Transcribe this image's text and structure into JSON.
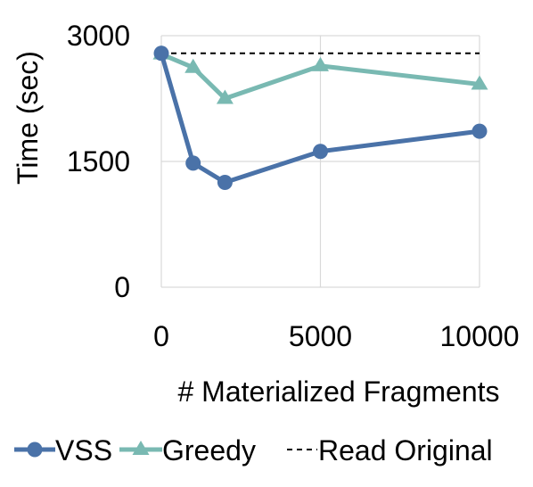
{
  "chart_data": {
    "type": "line",
    "title": "",
    "xlabel": "# Materialized Fragments",
    "ylabel": "Time (sec)",
    "xlim": [
      0,
      10000
    ],
    "ylim": [
      0,
      3000
    ],
    "xticks": [
      0,
      5000,
      10000
    ],
    "yticks": [
      0,
      1500,
      3000
    ],
    "x_tick_labels": [
      "0",
      "5000",
      "10000"
    ],
    "y_tick_labels": [
      "0",
      "1500",
      "3000"
    ],
    "grid": true,
    "legend_position": "bottom",
    "series": [
      {
        "name": "VSS",
        "marker": "circle",
        "color": "#4a72a8",
        "x": [
          0,
          1000,
          2000,
          5000,
          10000
        ],
        "y": [
          2790,
          1480,
          1250,
          1620,
          1860
        ]
      },
      {
        "name": "Greedy",
        "marker": "triangle",
        "color": "#79b9b2",
        "x": [
          0,
          1000,
          2000,
          5000,
          10000
        ],
        "y": [
          2780,
          2620,
          2250,
          2640,
          2420
        ]
      },
      {
        "name": "Read Original",
        "style": "dashed",
        "color": "#000000",
        "x": [
          0,
          10000
        ],
        "y": [
          2790,
          2790
        ]
      }
    ]
  }
}
